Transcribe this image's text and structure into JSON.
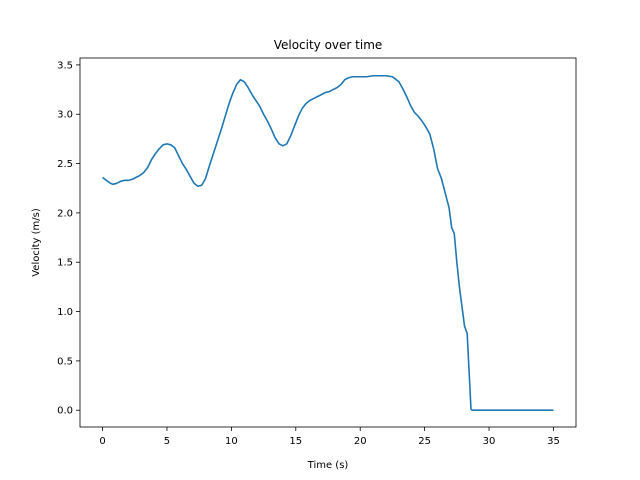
{
  "chart_data": {
    "type": "line",
    "title": "Velocity over time",
    "xlabel": "Time (s)",
    "ylabel": "Velocity (m/s)",
    "xlim": [
      -1.75,
      36.75
    ],
    "ylim": [
      -0.17,
      3.57
    ],
    "xticks": [
      0,
      5,
      10,
      15,
      20,
      25,
      30,
      35
    ],
    "xtick_labels": [
      "0",
      "5",
      "10",
      "15",
      "20",
      "25",
      "30",
      "35"
    ],
    "yticks": [
      0.0,
      0.5,
      1.0,
      1.5,
      2.0,
      2.5,
      3.0,
      3.5
    ],
    "ytick_labels": [
      "0.0",
      "0.5",
      "1.0",
      "1.5",
      "2.0",
      "2.5",
      "3.0",
      "3.5"
    ],
    "grid": false,
    "color": "#1f77b4",
    "series": [
      {
        "x": [
          0.0,
          0.3,
          0.6,
          0.8,
          1.1,
          1.4,
          1.7,
          2.0,
          2.3,
          2.6,
          2.9,
          3.2,
          3.5,
          3.8,
          4.1,
          4.4,
          4.7,
          5.0,
          5.3,
          5.6,
          5.9,
          6.2,
          6.5,
          6.8,
          7.1,
          7.4,
          7.7,
          8.0,
          8.3,
          8.6,
          8.9,
          9.2,
          9.5,
          9.8,
          10.1,
          10.4,
          10.7,
          11.0,
          11.3,
          11.6,
          11.9,
          12.2,
          12.5,
          12.8,
          13.1,
          13.4,
          13.7,
          14.0,
          14.3,
          14.6,
          14.9,
          15.2,
          15.5,
          15.8,
          16.1,
          16.4,
          16.7,
          17.0,
          17.3,
          17.6,
          17.9,
          18.2,
          18.5,
          18.8,
          19.1,
          19.4,
          19.7,
          20.0,
          20.5,
          21.0,
          21.5,
          22.0,
          22.5,
          23.0,
          23.3,
          23.6,
          23.9,
          24.2,
          24.5,
          24.8,
          25.1,
          25.4,
          25.7,
          26.0,
          26.3,
          26.6,
          26.9,
          27.1,
          27.3,
          27.5,
          27.7,
          27.9,
          28.1,
          28.3,
          28.45,
          28.6,
          28.7,
          29.0,
          30.0,
          31.0,
          32.0,
          33.0,
          34.0,
          35.0
        ],
        "y": [
          2.36,
          2.33,
          2.3,
          2.29,
          2.3,
          2.32,
          2.33,
          2.33,
          2.34,
          2.36,
          2.38,
          2.41,
          2.46,
          2.54,
          2.6,
          2.65,
          2.69,
          2.7,
          2.69,
          2.66,
          2.58,
          2.5,
          2.44,
          2.37,
          2.3,
          2.27,
          2.28,
          2.35,
          2.48,
          2.6,
          2.72,
          2.84,
          2.97,
          3.1,
          3.21,
          3.3,
          3.35,
          3.33,
          3.27,
          3.2,
          3.14,
          3.08,
          3.0,
          2.93,
          2.85,
          2.76,
          2.7,
          2.68,
          2.7,
          2.78,
          2.88,
          2.98,
          3.06,
          3.11,
          3.14,
          3.16,
          3.18,
          3.2,
          3.22,
          3.23,
          3.25,
          3.27,
          3.3,
          3.35,
          3.37,
          3.38,
          3.38,
          3.38,
          3.38,
          3.39,
          3.39,
          3.39,
          3.38,
          3.33,
          3.26,
          3.18,
          3.09,
          3.02,
          2.98,
          2.93,
          2.87,
          2.8,
          2.65,
          2.45,
          2.35,
          2.2,
          2.05,
          1.85,
          1.79,
          1.5,
          1.25,
          1.05,
          0.85,
          0.78,
          0.4,
          0.01,
          0.0,
          0.0,
          0.0,
          0.0,
          0.0,
          0.0,
          0.0,
          0.0
        ]
      }
    ]
  }
}
